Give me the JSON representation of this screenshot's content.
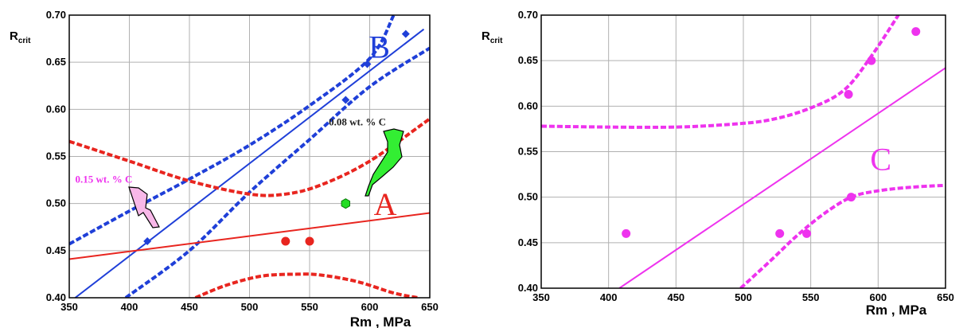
{
  "chart_data": [
    {
      "type": "scatter",
      "title": "",
      "xlabel": "Rm , MPa",
      "ylabel": "R",
      "ylabel_sub": "crit",
      "xlim": [
        350,
        650
      ],
      "ylim": [
        0.4,
        0.7
      ],
      "xticks": [
        "350",
        "400",
        "450",
        "500",
        "550",
        "600",
        "650"
      ],
      "yticks": [
        "0.40",
        "0.45",
        "0.50",
        "0.55",
        "0.60",
        "0.65",
        "0.70"
      ],
      "grid": true,
      "annotations": [
        {
          "text": "B",
          "x": 608,
          "y": 0.655,
          "color": "#1f3fd8"
        },
        {
          "text": "A",
          "x": 613,
          "y": 0.488,
          "color": "#e8251f"
        },
        {
          "text": "0.08 wt. % C",
          "x": 566,
          "y": 0.583,
          "color": "#222222"
        },
        {
          "text": "0.15 wt. % C",
          "x": 355,
          "y": 0.522,
          "color": "#ee33ee"
        }
      ],
      "series": [
        {
          "color": "#1f3fd8",
          "marker": "diamond",
          "x": [
            415,
            580,
            598,
            630
          ],
          "y": [
            0.46,
            0.61,
            0.648,
            0.68
          ],
          "fit": [
            [
              355,
              0.4
            ],
            [
              645,
              0.685
            ]
          ],
          "band_upper": [
            [
              350,
              0.457
            ],
            [
              400,
              0.492
            ],
            [
              450,
              0.526
            ],
            [
              500,
              0.562
            ],
            [
              550,
              0.604
            ],
            [
              600,
              0.654
            ],
            [
              620,
              0.7
            ]
          ],
          "band_lower": [
            [
              397,
              0.4
            ],
            [
              450,
              0.45
            ],
            [
              500,
              0.512
            ],
            [
              550,
              0.568
            ],
            [
              600,
              0.624
            ],
            [
              650,
              0.665
            ]
          ]
        },
        {
          "color": "#e8251f",
          "marker": "circle",
          "x": [
            530,
            550
          ],
          "y": [
            0.46,
            0.46
          ],
          "fit": [
            [
              350,
              0.441
            ],
            [
              650,
              0.49
            ]
          ],
          "band_upper": [
            [
              350,
              0.566
            ],
            [
              400,
              0.545
            ],
            [
              450,
              0.524
            ],
            [
              500,
              0.51
            ],
            [
              530,
              0.51
            ],
            [
              560,
              0.52
            ],
            [
              600,
              0.545
            ],
            [
              650,
              0.59
            ]
          ],
          "band_lower": [
            [
              455,
              0.4
            ],
            [
              480,
              0.413
            ],
            [
              510,
              0.423
            ],
            [
              540,
              0.425
            ],
            [
              560,
              0.424
            ],
            [
              590,
              0.417
            ],
            [
              620,
              0.405
            ],
            [
              640,
              0.4
            ]
          ]
        },
        {
          "color": "#22dd22",
          "marker": "hexagon",
          "x": [
            580
          ],
          "y": [
            0.5
          ]
        }
      ]
    },
    {
      "type": "scatter",
      "title": "",
      "xlabel": "Rm , MPa",
      "ylabel": "R",
      "ylabel_sub": "crit",
      "xlim": [
        350,
        650
      ],
      "ylim": [
        0.4,
        0.7
      ],
      "xticks": [
        "350",
        "400",
        "450",
        "500",
        "550",
        "600",
        "650"
      ],
      "yticks": [
        "0.40",
        "0.45",
        "0.50",
        "0.55",
        "0.60",
        "0.65",
        "0.70"
      ],
      "grid": true,
      "annotations": [
        {
          "text": "C",
          "x": 602,
          "y": 0.53,
          "color": "#ee33ee"
        }
      ],
      "series": [
        {
          "color": "#ee33ee",
          "marker": "circle",
          "x": [
            413,
            527,
            547,
            578,
            580,
            595,
            628
          ],
          "y": [
            0.46,
            0.46,
            0.46,
            0.613,
            0.5,
            0.65,
            0.682
          ],
          "fit": [
            [
              408,
              0.4
            ],
            [
              650,
              0.642
            ]
          ],
          "band_upper": [
            [
              350,
              0.578
            ],
            [
              400,
              0.577
            ],
            [
              450,
              0.577
            ],
            [
              490,
              0.58
            ],
            [
              520,
              0.585
            ],
            [
              550,
              0.598
            ],
            [
              575,
              0.618
            ],
            [
              595,
              0.655
            ],
            [
              615,
              0.7
            ]
          ],
          "band_lower": [
            [
              498,
              0.4
            ],
            [
              520,
              0.43
            ],
            [
              540,
              0.458
            ],
            [
              560,
              0.482
            ],
            [
              580,
              0.5
            ],
            [
              600,
              0.507
            ],
            [
              625,
              0.511
            ],
            [
              650,
              0.513
            ]
          ]
        }
      ]
    }
  ]
}
